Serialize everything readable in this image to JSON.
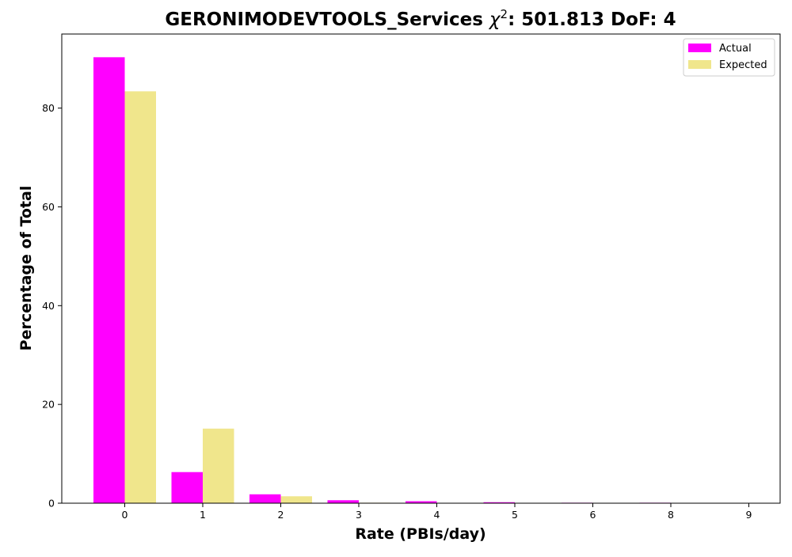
{
  "chart_data": {
    "type": "bar",
    "title_prefix": "GERONIMODEVTOOLS_Services ",
    "title_symbol": "χ",
    "title_sup": "2",
    "title_suffix": ": 501.813 DoF: 4",
    "xlabel": "Rate (PBIs/day)",
    "ylabel": "Percentage of Total",
    "categories": [
      "0",
      "1",
      "2",
      "3",
      "4",
      "5",
      "6",
      "8",
      "9"
    ],
    "series": [
      {
        "name": "Actual",
        "color": "#ff00ff",
        "values": [
          90.3,
          6.3,
          1.8,
          0.6,
          0.4,
          0.2,
          0.1,
          0.1,
          0.0
        ]
      },
      {
        "name": "Expected",
        "color": "#f0e68c",
        "values": [
          83.4,
          15.1,
          1.4,
          0.1,
          0.0,
          0.0,
          0.0,
          0.0,
          0.0
        ]
      }
    ],
    "yticks": [
      0,
      20,
      40,
      60,
      80
    ],
    "ylim": [
      0,
      95
    ],
    "legend_position": "top-right",
    "grid": false
  }
}
